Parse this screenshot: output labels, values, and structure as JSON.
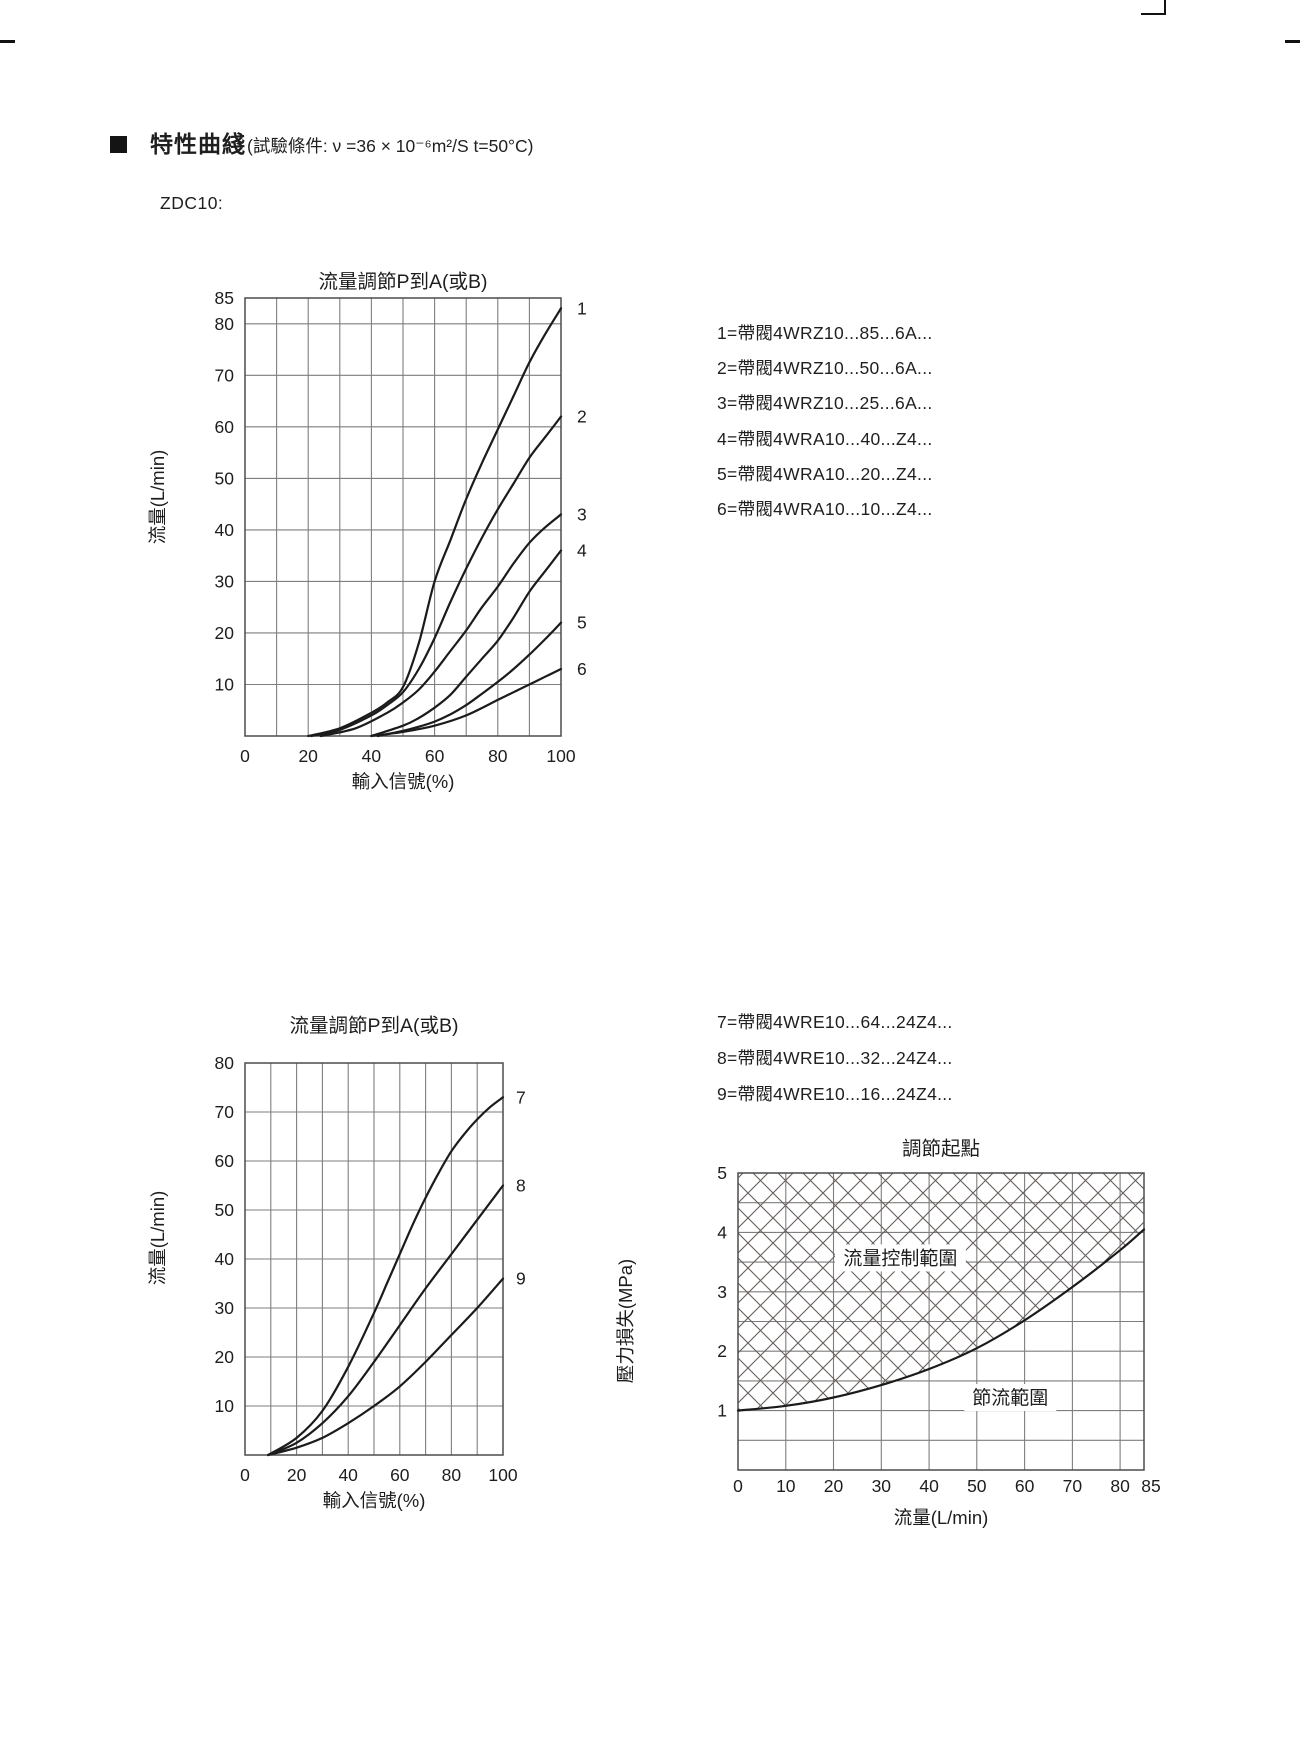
{
  "page": {
    "section_title": "特性曲綫",
    "test_condition": "(試驗條件: ν =36 × 10⁻⁶m²/S  t=50°C)",
    "model_label": "ZDC10:"
  },
  "legend_upper": {
    "items": [
      "1=帶閥4WRZ10...85...6A...",
      "2=帶閥4WRZ10...50...6A...",
      "3=帶閥4WRZ10...25...6A...",
      "4=帶閥4WRA10...40...Z4...",
      "5=帶閥4WRA10...20...Z4...",
      "6=帶閥4WRA10...10...Z4..."
    ]
  },
  "legend_lower": {
    "items": [
      "7=帶閥4WRE10...64...24Z4...",
      "8=帶閥4WRE10...32...24Z4...",
      "9=帶閥4WRE10...16...24Z4..."
    ]
  },
  "colors": {
    "curve": "#1b1b1b",
    "grid": "#7e7e7e",
    "border": "#4c4c4c",
    "text": "#1d1d1d",
    "hatch": "#655e5a"
  },
  "chart_data": [
    {
      "id": "flow-upper",
      "type": "line",
      "title": "流量調節P到A(或B)",
      "xlabel": "輸入信號(%)",
      "ylabel": "流量(L/min)",
      "xlim": [
        0,
        100
      ],
      "ylim": [
        0,
        85
      ],
      "x_ticks": [
        0,
        20,
        40,
        60,
        80,
        100
      ],
      "y_ticks": [
        85,
        80,
        70,
        60,
        50,
        40,
        30,
        20,
        10
      ],
      "x_grid": [
        10,
        20,
        30,
        40,
        50,
        60,
        70,
        80,
        90
      ],
      "y_grid": [
        10,
        20,
        30,
        40,
        50,
        60,
        70,
        80
      ],
      "grid": true,
      "legend_position": "right-text-block",
      "series": [
        {
          "label": "1",
          "x": [
            20,
            30,
            40,
            45,
            50,
            55,
            60,
            65,
            70,
            75,
            80,
            85,
            90,
            95,
            100
          ],
          "y": [
            0,
            1.5,
            4.5,
            6.5,
            9.5,
            18,
            30,
            38,
            46,
            53,
            59.5,
            66,
            72.5,
            78,
            83
          ]
        },
        {
          "label": "2",
          "x": [
            21,
            30,
            40,
            45,
            50,
            55,
            60,
            65,
            70,
            75,
            80,
            85,
            90,
            95,
            100
          ],
          "y": [
            0,
            1.2,
            4,
            6,
            8.5,
            13,
            19,
            26,
            32.5,
            38.5,
            44,
            49,
            54,
            58,
            62
          ]
        },
        {
          "label": "3",
          "x": [
            24,
            35,
            45,
            50,
            55,
            60,
            65,
            70,
            75,
            80,
            85,
            90,
            95,
            100
          ],
          "y": [
            0,
            1.5,
            4.5,
            6.5,
            9,
            12.5,
            16.5,
            20.5,
            25,
            29,
            33.5,
            37.5,
            40.5,
            43
          ]
        },
        {
          "label": "4",
          "x": [
            40,
            50,
            55,
            60,
            65,
            70,
            75,
            80,
            85,
            90,
            95,
            100
          ],
          "y": [
            0,
            2,
            3.5,
            5.5,
            8,
            11.5,
            15,
            18.5,
            23,
            28,
            32,
            36
          ]
        },
        {
          "label": "5",
          "x": [
            42,
            50,
            55,
            60,
            65,
            70,
            75,
            80,
            85,
            90,
            95,
            100
          ],
          "y": [
            0,
            1,
            1.8,
            2.8,
            4.2,
            6,
            8.2,
            10.5,
            13,
            15.8,
            18.8,
            22
          ]
        },
        {
          "label": "6",
          "x": [
            40,
            50,
            60,
            70,
            80,
            85,
            90,
            95,
            100
          ],
          "y": [
            0,
            0.8,
            2,
            4,
            7,
            8.5,
            10,
            11.5,
            13
          ]
        }
      ]
    },
    {
      "id": "flow-lower",
      "type": "line",
      "title": "流量調節P到A(或B)",
      "xlabel": "輸入信號(%)",
      "ylabel": "流量(L/min)",
      "xlim": [
        0,
        100
      ],
      "ylim": [
        0,
        80
      ],
      "x_ticks": [
        0,
        20,
        40,
        60,
        80,
        100
      ],
      "y_ticks": [
        80,
        70,
        60,
        50,
        40,
        30,
        20,
        10
      ],
      "x_grid": [
        10,
        20,
        30,
        40,
        50,
        60,
        70,
        80,
        90
      ],
      "y_grid": [
        10,
        20,
        30,
        40,
        50,
        60,
        70
      ],
      "grid": true,
      "legend_position": "right-text-block",
      "series": [
        {
          "label": "7",
          "x": [
            9,
            20,
            30,
            40,
            50,
            55,
            60,
            65,
            70,
            75,
            80,
            85,
            90,
            95,
            100
          ],
          "y": [
            0,
            3.5,
            9,
            18,
            29,
            35,
            41,
            47,
            52.5,
            57.5,
            62,
            65.5,
            68.5,
            71,
            73
          ]
        },
        {
          "label": "8",
          "x": [
            9,
            20,
            30,
            40,
            50,
            60,
            70,
            80,
            90,
            100
          ],
          "y": [
            0,
            2.5,
            6.5,
            12,
            19,
            26.5,
            34,
            41,
            48,
            55
          ]
        },
        {
          "label": "9",
          "x": [
            9,
            20,
            30,
            40,
            50,
            60,
            70,
            80,
            90,
            100
          ],
          "y": [
            0,
            1.5,
            3.5,
            6.5,
            10,
            14,
            19,
            24.5,
            30,
            36
          ]
        }
      ]
    },
    {
      "id": "pressure",
      "type": "line",
      "title": "調節起點",
      "xlabel": "流量(L/min)",
      "ylabel": "壓力損失(MPa)",
      "xlim": [
        0,
        85
      ],
      "ylim": [
        0,
        5
      ],
      "x_ticks": [
        0,
        10,
        20,
        30,
        40,
        50,
        60,
        70,
        80,
        85
      ],
      "y_ticks": [
        5,
        4,
        3,
        2,
        1
      ],
      "x_grid": [
        10,
        20,
        30,
        40,
        50,
        60,
        70,
        80
      ],
      "y_grid": [
        0.5,
        1,
        1.5,
        2,
        2.5,
        3,
        3.5,
        4,
        4.5
      ],
      "grid": true,
      "hatch_above_series": true,
      "annotations": [
        {
          "text": "流量控制範圍",
          "x": 34,
          "y": 3.57
        },
        {
          "text": "節流範圍",
          "x": 57,
          "y": 1.22
        }
      ],
      "series": [
        {
          "label": "",
          "x": [
            0,
            10,
            20,
            30,
            40,
            50,
            60,
            70,
            80,
            85
          ],
          "y": [
            1,
            1.08,
            1.22,
            1.43,
            1.7,
            2.05,
            2.52,
            3.08,
            3.7,
            4.05
          ]
        }
      ]
    }
  ]
}
